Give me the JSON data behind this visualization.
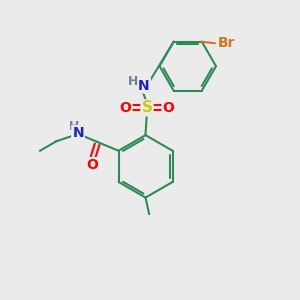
{
  "bg_color": "#ebebeb",
  "atoms": {
    "colors": {
      "C": "#2e8b57",
      "N": "#2020c8",
      "O": "#ff0000",
      "S": "#cccc00",
      "Br": "#cc7722",
      "H": "#708090"
    }
  },
  "bond_color": "#2e8b57",
  "font_size": 10,
  "figsize": [
    3.0,
    3.0
  ],
  "dpi": 100
}
